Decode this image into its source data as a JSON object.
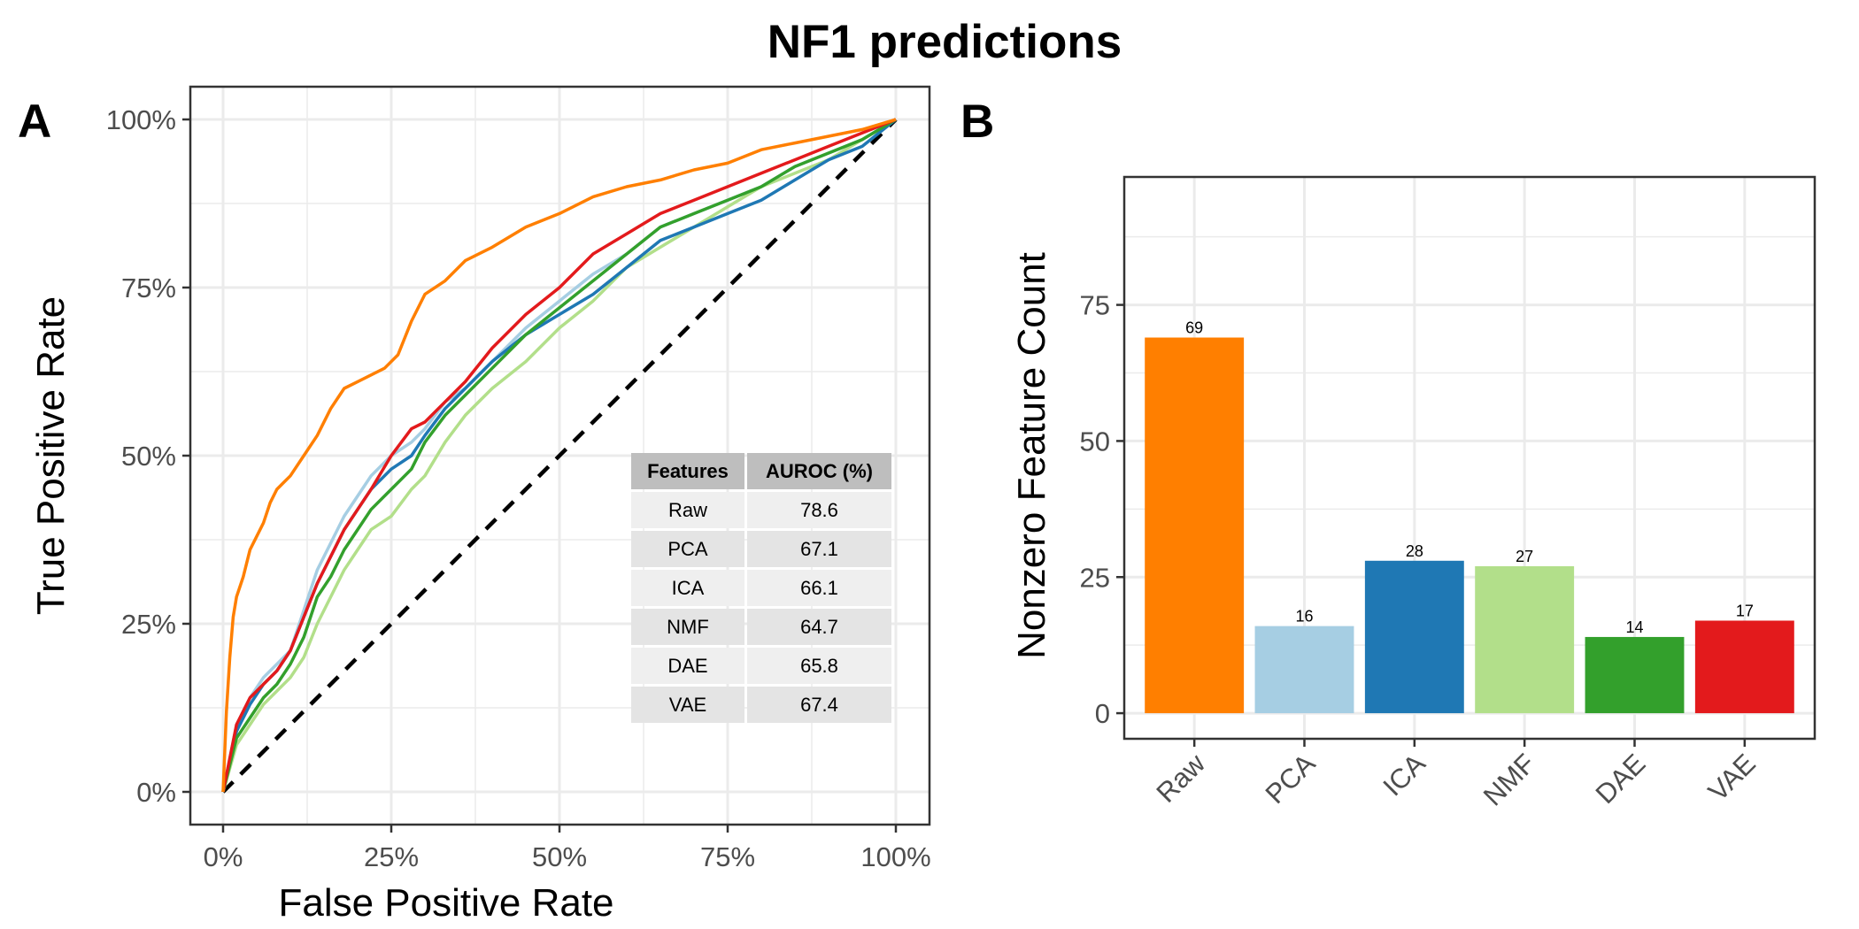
{
  "title": "NF1 predictions",
  "colors": {
    "Raw": "#ff7f00",
    "PCA": "#a6cee3",
    "ICA": "#1f78b4",
    "NMF": "#b2df8a",
    "DAE": "#33a02c",
    "VAE": "#e31a1c",
    "diagonal": "#000000",
    "grid": "#ebebeb",
    "border": "#333333"
  },
  "chart_data": [
    {
      "type": "line",
      "panel_label": "A",
      "xlabel": "False Positive Rate",
      "ylabel": "True Positive Rate",
      "xlim": [
        0,
        1
      ],
      "ylim": [
        0,
        1
      ],
      "xticks": [
        0,
        0.25,
        0.5,
        0.75,
        1
      ],
      "xtick_labels": [
        "0%",
        "25%",
        "50%",
        "75%",
        "100%"
      ],
      "yticks": [
        0,
        0.25,
        0.5,
        0.75,
        1
      ],
      "ytick_labels": [
        "0%",
        "25%",
        "50%",
        "75%",
        "100%"
      ],
      "grid": true,
      "diagonal_reference": true,
      "table": {
        "headers": [
          "Features",
          "AUROC (%)"
        ],
        "rows": [
          [
            "Raw",
            "78.6"
          ],
          [
            "PCA",
            "67.1"
          ],
          [
            "ICA",
            "66.1"
          ],
          [
            "NMF",
            "64.7"
          ],
          [
            "DAE",
            "65.8"
          ],
          [
            "VAE",
            "67.4"
          ]
        ],
        "placement": "bottom-right"
      },
      "series": [
        {
          "key": "Raw",
          "x": [
            0,
            0.005,
            0.01,
            0.015,
            0.02,
            0.03,
            0.04,
            0.05,
            0.06,
            0.07,
            0.08,
            0.09,
            0.1,
            0.12,
            0.14,
            0.16,
            0.18,
            0.2,
            0.22,
            0.24,
            0.26,
            0.28,
            0.3,
            0.33,
            0.36,
            0.4,
            0.45,
            0.5,
            0.55,
            0.6,
            0.65,
            0.7,
            0.75,
            0.8,
            0.85,
            0.9,
            0.95,
            1
          ],
          "y": [
            0,
            0.12,
            0.2,
            0.26,
            0.29,
            0.32,
            0.36,
            0.38,
            0.4,
            0.43,
            0.45,
            0.46,
            0.47,
            0.5,
            0.53,
            0.57,
            0.6,
            0.61,
            0.62,
            0.63,
            0.65,
            0.7,
            0.74,
            0.76,
            0.79,
            0.81,
            0.84,
            0.86,
            0.885,
            0.9,
            0.91,
            0.925,
            0.935,
            0.955,
            0.965,
            0.975,
            0.985,
            1
          ]
        },
        {
          "key": "PCA",
          "x": [
            0,
            0.02,
            0.04,
            0.06,
            0.08,
            0.1,
            0.12,
            0.14,
            0.16,
            0.18,
            0.2,
            0.22,
            0.25,
            0.28,
            0.3,
            0.33,
            0.36,
            0.4,
            0.45,
            0.5,
            0.55,
            0.6,
            0.65,
            0.7,
            0.75,
            0.8,
            0.85,
            0.9,
            0.95,
            1
          ],
          "y": [
            0,
            0.1,
            0.14,
            0.17,
            0.19,
            0.21,
            0.27,
            0.33,
            0.37,
            0.41,
            0.44,
            0.47,
            0.5,
            0.52,
            0.54,
            0.58,
            0.6,
            0.64,
            0.69,
            0.73,
            0.77,
            0.8,
            0.84,
            0.86,
            0.88,
            0.9,
            0.93,
            0.95,
            0.97,
            1
          ]
        },
        {
          "key": "ICA",
          "x": [
            0,
            0.02,
            0.04,
            0.06,
            0.08,
            0.1,
            0.12,
            0.14,
            0.16,
            0.18,
            0.2,
            0.22,
            0.25,
            0.28,
            0.3,
            0.33,
            0.36,
            0.4,
            0.45,
            0.5,
            0.55,
            0.6,
            0.65,
            0.7,
            0.75,
            0.8,
            0.85,
            0.9,
            0.95,
            1
          ],
          "y": [
            0,
            0.09,
            0.13,
            0.16,
            0.18,
            0.21,
            0.26,
            0.31,
            0.35,
            0.39,
            0.42,
            0.45,
            0.48,
            0.5,
            0.53,
            0.57,
            0.6,
            0.64,
            0.68,
            0.71,
            0.74,
            0.78,
            0.82,
            0.84,
            0.86,
            0.88,
            0.91,
            0.94,
            0.96,
            1
          ]
        },
        {
          "key": "NMF",
          "x": [
            0,
            0.02,
            0.04,
            0.06,
            0.08,
            0.1,
            0.12,
            0.14,
            0.16,
            0.18,
            0.2,
            0.22,
            0.25,
            0.28,
            0.3,
            0.33,
            0.36,
            0.4,
            0.45,
            0.5,
            0.55,
            0.6,
            0.65,
            0.7,
            0.75,
            0.8,
            0.85,
            0.9,
            0.95,
            1
          ],
          "y": [
            0,
            0.07,
            0.1,
            0.13,
            0.15,
            0.17,
            0.2,
            0.25,
            0.29,
            0.33,
            0.36,
            0.39,
            0.41,
            0.45,
            0.47,
            0.52,
            0.56,
            0.6,
            0.64,
            0.69,
            0.73,
            0.78,
            0.81,
            0.84,
            0.87,
            0.9,
            0.92,
            0.94,
            0.97,
            1
          ]
        },
        {
          "key": "DAE",
          "x": [
            0,
            0.02,
            0.04,
            0.06,
            0.08,
            0.1,
            0.12,
            0.14,
            0.16,
            0.18,
            0.2,
            0.22,
            0.25,
            0.28,
            0.3,
            0.33,
            0.36,
            0.4,
            0.45,
            0.5,
            0.55,
            0.6,
            0.65,
            0.7,
            0.75,
            0.8,
            0.85,
            0.9,
            0.95,
            1
          ],
          "y": [
            0,
            0.08,
            0.11,
            0.14,
            0.16,
            0.19,
            0.23,
            0.29,
            0.32,
            0.36,
            0.39,
            0.42,
            0.45,
            0.48,
            0.52,
            0.56,
            0.59,
            0.63,
            0.68,
            0.72,
            0.76,
            0.8,
            0.84,
            0.86,
            0.88,
            0.9,
            0.93,
            0.95,
            0.97,
            1
          ]
        },
        {
          "key": "VAE",
          "x": [
            0,
            0.02,
            0.04,
            0.06,
            0.08,
            0.1,
            0.12,
            0.14,
            0.16,
            0.18,
            0.2,
            0.22,
            0.25,
            0.28,
            0.3,
            0.33,
            0.36,
            0.4,
            0.45,
            0.5,
            0.55,
            0.6,
            0.65,
            0.7,
            0.75,
            0.8,
            0.85,
            0.9,
            0.95,
            1
          ],
          "y": [
            0,
            0.1,
            0.14,
            0.16,
            0.18,
            0.21,
            0.26,
            0.31,
            0.35,
            0.39,
            0.42,
            0.45,
            0.5,
            0.54,
            0.55,
            0.58,
            0.61,
            0.66,
            0.71,
            0.75,
            0.8,
            0.83,
            0.86,
            0.88,
            0.9,
            0.92,
            0.94,
            0.96,
            0.98,
            1
          ]
        }
      ]
    },
    {
      "type": "bar",
      "panel_label": "B",
      "xlabel": "",
      "ylabel": "Nonzero Feature Count",
      "categories": [
        "Raw",
        "PCA",
        "ICA",
        "NMF",
        "DAE",
        "VAE"
      ],
      "values": [
        69,
        16,
        28,
        27,
        14,
        17
      ],
      "data_labels": [
        "69",
        "16",
        "28",
        "27",
        "14",
        "17"
      ],
      "ylim": [
        -4.7,
        98.5
      ],
      "yticks": [
        0,
        25,
        50,
        75
      ],
      "ytick_labels": [
        "0",
        "25",
        "50",
        "75"
      ],
      "grid": true
    }
  ]
}
